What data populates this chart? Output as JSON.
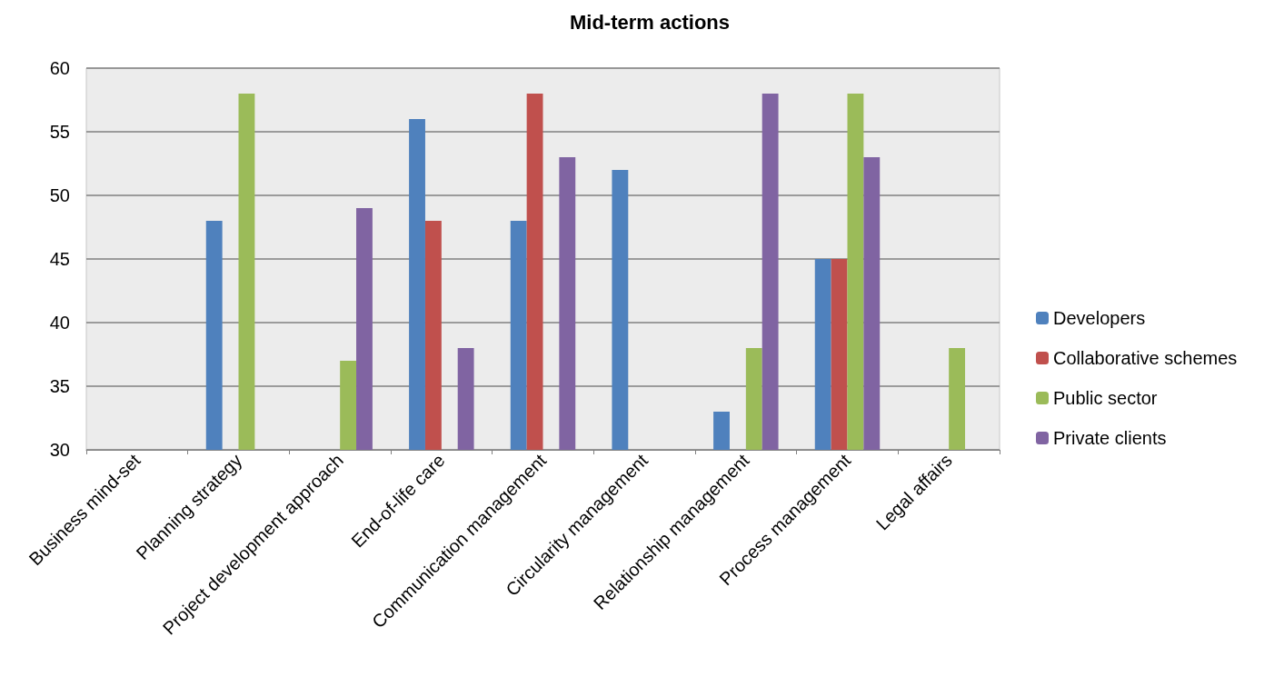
{
  "chart_data": {
    "type": "bar",
    "title": "Mid-term actions",
    "categories": [
      "Business mind-set",
      "Planning strategy",
      "Project development approach",
      "End-of-life care",
      "Communication management",
      "Circularity management",
      "Relationship management",
      "Process management",
      "Legal affairs"
    ],
    "series": [
      {
        "name": "Developers",
        "color": "#4f81bd",
        "values": [
          30,
          48,
          30,
          56,
          48,
          52,
          33,
          45,
          30
        ]
      },
      {
        "name": "Collaborative schemes",
        "color": "#c0504d",
        "values": [
          30,
          30,
          30,
          48,
          58,
          30,
          30,
          45,
          30
        ]
      },
      {
        "name": "Public sector",
        "color": "#9bbb59",
        "values": [
          30,
          58,
          37,
          30,
          30,
          30,
          38,
          58,
          38
        ]
      },
      {
        "name": "Private clients",
        "color": "#8064a2",
        "values": [
          30,
          30,
          49,
          38,
          53,
          30,
          58,
          53,
          null
        ]
      }
    ],
    "ylim": [
      30,
      60
    ],
    "yticks": [
      30,
      35,
      40,
      45,
      50,
      55,
      60
    ],
    "grid": "y",
    "legend": "right"
  }
}
